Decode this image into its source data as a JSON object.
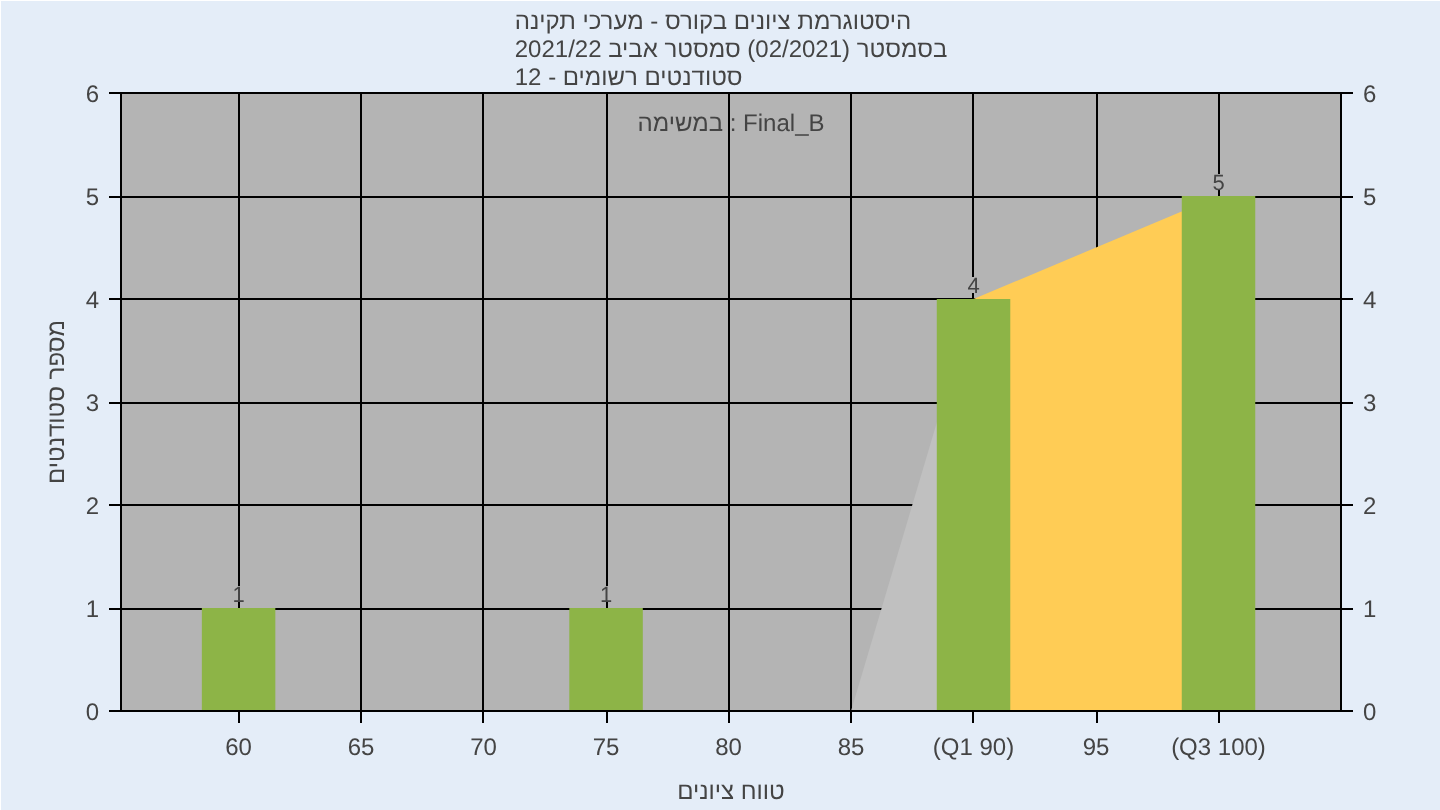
{
  "chart_data": {
    "type": "bar",
    "title": "היסטוגרמת ציונים בקורס - מערכי תקינה\nבסמסטר (02/2021) סמסטר אביב 2021/22\nסטודנטים רשומים - 12",
    "xlabel": "טווח ציונים",
    "ylabel": "מספר סטודנטים",
    "annotations": [
      "במשימה : Final_B"
    ],
    "series": [
      {
        "type": "area",
        "color": "#c0c0c0",
        "x": [
          85,
          90
        ],
        "values": [
          0,
          4
        ]
      },
      {
        "type": "area",
        "color": "#ffcc55",
        "x": [
          90,
          100
        ],
        "values": [
          4,
          5
        ]
      },
      {
        "color": "#8db447",
        "x": [
          60,
          75,
          90,
          100
        ],
        "values": [
          1,
          1,
          4,
          5
        ],
        "value_labels": [
          "1",
          "1",
          "4",
          "5"
        ]
      }
    ],
    "xlim": [
      55.2,
      105
    ],
    "xticks": [
      60,
      65,
      70,
      75,
      80,
      85,
      {
        "value": 90,
        "label": "(Q1 90)"
      },
      95,
      {
        "value": 100,
        "label": "(Q3 100)"
      }
    ],
    "ylim": [
      0,
      6
    ],
    "yticks": [
      0,
      1,
      2,
      3,
      4,
      5,
      6
    ],
    "y2lim": [
      0,
      6
    ],
    "y2ticks": [
      0,
      1,
      2,
      3,
      4,
      5,
      6
    ],
    "grid": true
  }
}
